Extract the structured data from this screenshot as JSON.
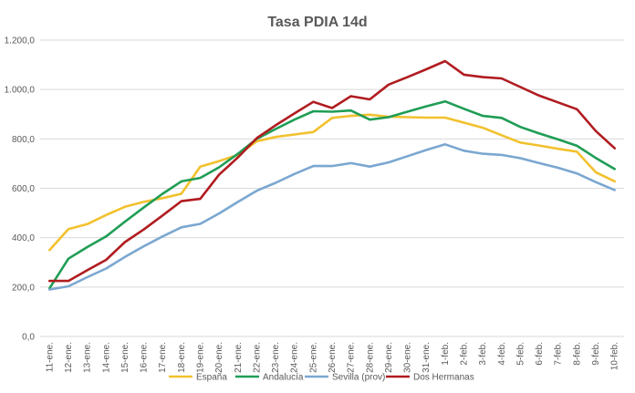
{
  "chart_data": {
    "type": "line",
    "title": "Tasa PDIA 14d",
    "xlabel": "",
    "ylabel": "",
    "ylim": [
      0,
      1200
    ],
    "yticks": [
      0,
      200,
      400,
      600,
      800,
      1000,
      1200
    ],
    "ytick_labels": [
      "0,0",
      "200,0",
      "400,0",
      "600,0",
      "800,0",
      "1.000,0",
      "1.200,0"
    ],
    "grid": true,
    "legend_position": "bottom",
    "categories": [
      "11-ene.",
      "12-ene.",
      "13-ene.",
      "14-ene.",
      "15-ene.",
      "16-ene.",
      "17-ene.",
      "18-ene.",
      "19-ene.",
      "20-ene.",
      "21-ene.",
      "22-ene.",
      "23-ene.",
      "24-ene.",
      "25-ene.",
      "26-ene.",
      "27-ene.",
      "28-ene.",
      "29-ene.",
      "30-ene.",
      "31-ene.",
      "1-feb.",
      "2-feb.",
      "3-feb.",
      "4-feb.",
      "5-feb.",
      "6-feb.",
      "7-feb.",
      "8-feb.",
      "9-feb.",
      "10-feb."
    ],
    "series": [
      {
        "name": "España",
        "color": "#f2c12e",
        "values": [
          350,
          435,
          455,
          492,
          525,
          545,
          560,
          578,
          688,
          710,
          735,
          790,
          808,
          818,
          828,
          885,
          893,
          898,
          890,
          888,
          886,
          886,
          866,
          845,
          815,
          785,
          773,
          760,
          748,
          665,
          628
        ]
      },
      {
        "name": "Andalucía",
        "color": "#1f9d55",
        "values": [
          195,
          315,
          362,
          405,
          465,
          522,
          578,
          628,
          642,
          685,
          740,
          800,
          840,
          878,
          912,
          910,
          915,
          878,
          888,
          910,
          932,
          952,
          922,
          893,
          885,
          848,
          822,
          798,
          772,
          723,
          678
        ]
      },
      {
        "name": "Sevilla (prov)",
        "color": "#7ba7d0",
        "values": [
          190,
          203,
          240,
          275,
          322,
          365,
          405,
          442,
          456,
          498,
          545,
          590,
          622,
          658,
          690,
          690,
          702,
          688,
          705,
          730,
          755,
          778,
          752,
          740,
          735,
          722,
          702,
          683,
          660,
          625,
          593
        ]
      },
      {
        "name": "Dos Hermanas",
        "color": "#b01c20",
        "values": [
          225,
          225,
          268,
          310,
          382,
          433,
          490,
          548,
          557,
          655,
          725,
          803,
          855,
          903,
          950,
          925,
          973,
          960,
          1020,
          1050,
          1082,
          1115,
          1060,
          1050,
          1045,
          1010,
          975,
          948,
          920,
          832,
          762
        ]
      }
    ]
  }
}
